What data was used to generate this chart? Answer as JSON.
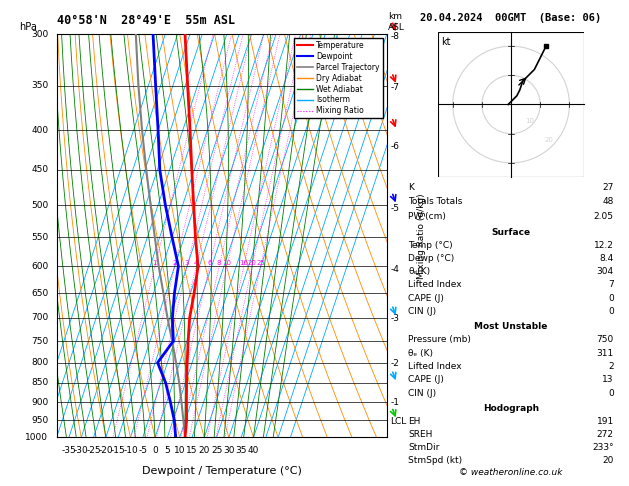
{
  "title_left": "40°58'N  28°49'E  55m ASL",
  "title_right": "20.04.2024  00GMT  (Base: 06)",
  "xlabel": "Dewpoint / Temperature (°C)",
  "bg_color": "#ffffff",
  "pressure_levels": [
    300,
    350,
    400,
    450,
    500,
    550,
    600,
    650,
    700,
    750,
    800,
    850,
    900,
    950,
    1000
  ],
  "temp_data": {
    "pressure": [
      1000,
      950,
      900,
      850,
      800,
      750,
      700,
      650,
      600,
      550,
      500,
      450,
      400,
      350,
      300
    ],
    "temp": [
      12.2,
      10.5,
      8.0,
      5.5,
      3.0,
      0.5,
      -2.0,
      -3.5,
      -5.5,
      -10.5,
      -15.5,
      -21.0,
      -27.0,
      -34.0,
      -42.0
    ]
  },
  "dewp_data": {
    "pressure": [
      1000,
      950,
      900,
      850,
      800,
      750,
      700,
      650,
      600,
      550,
      500,
      450,
      400,
      350,
      300
    ],
    "dewp": [
      8.4,
      5.5,
      1.5,
      -3.0,
      -9.0,
      -5.5,
      -9.0,
      -11.5,
      -13.5,
      -20.0,
      -27.0,
      -34.0,
      -40.0,
      -47.0,
      -55.0
    ]
  },
  "parcel_data": {
    "pressure": [
      1000,
      950,
      900,
      850,
      800,
      750,
      700,
      650,
      600,
      550,
      500,
      450,
      400,
      350,
      300
    ],
    "temp": [
      12.2,
      9.2,
      6.0,
      2.5,
      -1.5,
      -6.0,
      -11.0,
      -16.0,
      -21.5,
      -27.0,
      -33.0,
      -39.5,
      -46.5,
      -54.0,
      -62.0
    ]
  },
  "skew_factor": 45,
  "temp_color": "#ff0000",
  "dewp_color": "#0000ff",
  "parcel_color": "#808080",
  "dry_adiabat_color": "#ff8c00",
  "wet_adiabat_color": "#008000",
  "isotherm_color": "#00aaff",
  "mixing_ratio_color": "#ff00ff",
  "xlim_temp": [
    -40,
    40
  ],
  "pressure_min": 300,
  "pressure_max": 1000,
  "km_ticks": [
    1,
    2,
    3,
    4,
    5,
    6,
    7,
    8
  ],
  "km_pressures": [
    902,
    802,
    702,
    605,
    505,
    420,
    352,
    302
  ],
  "mixing_ratio_values": [
    1,
    2,
    3,
    4,
    6,
    8,
    10,
    16,
    20,
    25
  ],
  "lcl_pressure": 955,
  "wind_barb_data": {
    "pressures": [
      300,
      350,
      400,
      500,
      700,
      850,
      950
    ],
    "colors": [
      "#ff0000",
      "#ff0000",
      "#ff0000",
      "#0000ff",
      "#00aaff",
      "#00aaff",
      "#00cc00"
    ]
  },
  "stats": {
    "K": 27,
    "Totals Totals": 48,
    "PW (cm)": "2.05",
    "Surface_Temp": "12.2",
    "Surface_Dewp": "8.4",
    "Surface_theta_e": 304,
    "Surface_LiftedIndex": 7,
    "Surface_CAPE": 0,
    "Surface_CIN": 0,
    "MU_Pressure": 750,
    "MU_theta_e": 311,
    "MU_LiftedIndex": 2,
    "MU_CAPE": 13,
    "MU_CIN": 0,
    "EH": 191,
    "SREH": 272,
    "StmDir": "233°",
    "StmSpd": 20
  },
  "hodo_winds": {
    "u": [
      -1,
      0,
      2,
      3,
      4,
      8,
      10,
      12
    ],
    "v": [
      0,
      1,
      3,
      5,
      8,
      12,
      16,
      20
    ]
  }
}
